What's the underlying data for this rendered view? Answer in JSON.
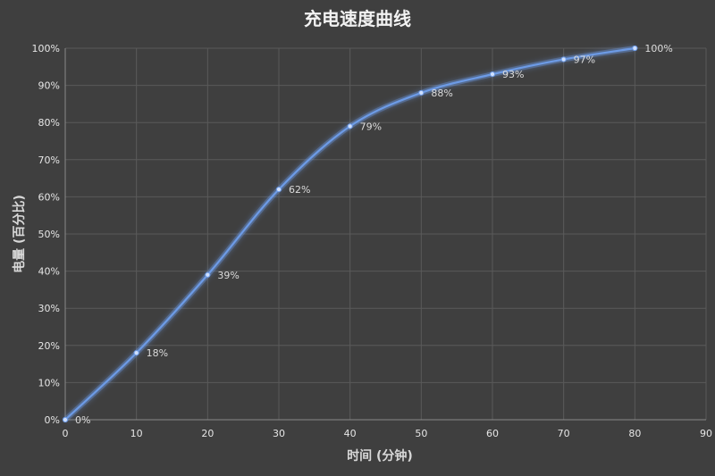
{
  "chart_data": {
    "type": "line",
    "title": "充电速度曲线",
    "xlabel": "时间 (分钟)",
    "ylabel": "电量 (百分比)",
    "x": [
      0,
      10,
      20,
      30,
      40,
      50,
      60,
      70,
      80
    ],
    "series": [
      {
        "values": [
          0,
          18,
          39,
          62,
          79,
          88,
          93,
          97,
          100
        ],
        "data_labels": [
          "0%",
          "18%",
          "39%",
          "62%",
          "79%",
          "88%",
          "93%",
          "97%",
          "100%"
        ],
        "color": "#6d9be6"
      }
    ],
    "xlim": [
      0,
      90
    ],
    "ylim": [
      0,
      100
    ],
    "x_ticks": [
      0,
      10,
      20,
      30,
      40,
      50,
      60,
      70,
      80,
      90
    ],
    "x_tick_labels": [
      "0",
      "10",
      "20",
      "30",
      "40",
      "50",
      "60",
      "70",
      "80",
      "90"
    ],
    "y_ticks": [
      0,
      10,
      20,
      30,
      40,
      50,
      60,
      70,
      80,
      90,
      100
    ],
    "y_tick_labels": [
      "0%",
      "10%",
      "20%",
      "30%",
      "40%",
      "50%",
      "60%",
      "70%",
      "80%",
      "90%",
      "100%"
    ],
    "grid": true,
    "legend": "none",
    "background": "#3f3f3f",
    "line_color": "#6d9be6"
  }
}
